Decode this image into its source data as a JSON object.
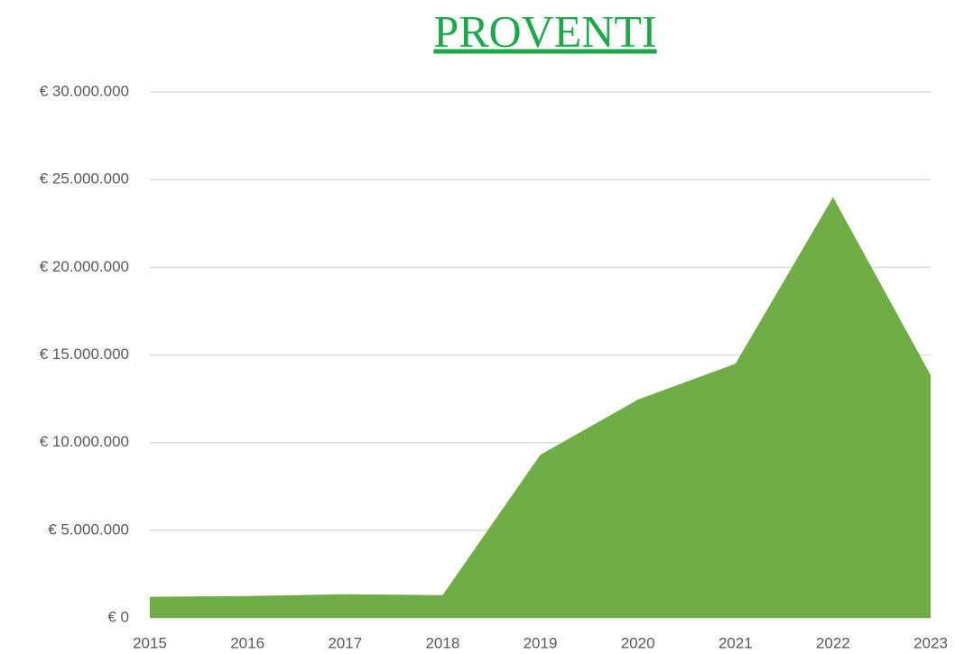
{
  "chart_data": {
    "type": "area",
    "title": "PROVENTI",
    "title_color": "#1fa84a",
    "categories": [
      "2015",
      "2016",
      "2017",
      "2018",
      "2019",
      "2020",
      "2021",
      "2022",
      "2023"
    ],
    "values": [
      1200000,
      1250000,
      1350000,
      1300000,
      9300000,
      12450000,
      14500000,
      24000000,
      13850000
    ],
    "color": "#70ad47",
    "ylim": [
      0,
      30000000
    ],
    "yticks": [
      {
        "value": 0,
        "label": "€ 0"
      },
      {
        "value": 5000000,
        "label": "€ 5.000.000"
      },
      {
        "value": 10000000,
        "label": "€ 10.000.000"
      },
      {
        "value": 15000000,
        "label": "€ 15.000.000"
      },
      {
        "value": 20000000,
        "label": "€ 20.000.000"
      },
      {
        "value": 25000000,
        "label": "€ 25.000.000"
      },
      {
        "value": 30000000,
        "label": "€ 30.000.000"
      }
    ],
    "grid": true
  }
}
